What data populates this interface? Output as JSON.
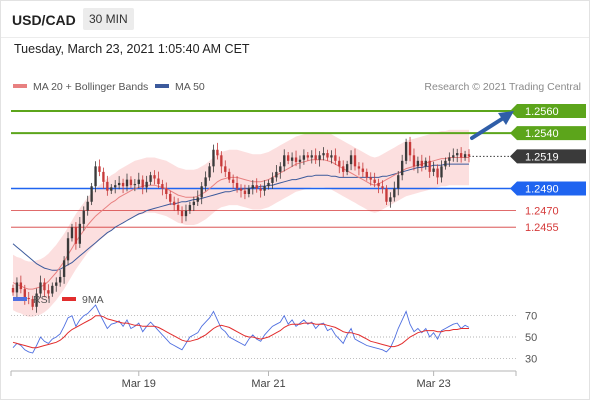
{
  "header": {
    "symbol": "USD/CAD",
    "timeframe": "30 MIN"
  },
  "datetime": "Tuesday, March 23, 2021 1:05:40 AM CET",
  "colors": {
    "up_candle": "#3a3a3a",
    "down_candle": "#c73a3a",
    "ma20": "#e88080",
    "bands": "#fbd9d9",
    "ma50": "#3c5a9c",
    "resistance": "#5ca51b",
    "pivot": "#1f64f0",
    "support": "#d53a3a",
    "last": "#3a3a3a",
    "rsi": "#5070e0",
    "rsi_ma": "#e22d2d",
    "arrow": "#2f5ea8"
  },
  "chart_data": [
    {
      "type": "candlestick",
      "legend": [
        "MA 20 + Bollinger Bands",
        "MA 50"
      ],
      "source": "Research © 2021 Trading Central",
      "x_ticks": [
        "Mar 19",
        "Mar 21",
        "Mar 23"
      ],
      "ylim": [
        1.24,
        1.257
      ],
      "levels": [
        {
          "value": 1.256,
          "label": "1.2560",
          "kind": "resistance"
        },
        {
          "value": 1.254,
          "label": "1.2540",
          "kind": "resistance"
        },
        {
          "value": 1.2519,
          "label": "1.2519",
          "kind": "last"
        },
        {
          "value": 1.249,
          "label": "1.2490",
          "kind": "pivot"
        },
        {
          "value": 1.247,
          "label": "1.2470",
          "kind": "support"
        },
        {
          "value": 1.2455,
          "label": "1.2455",
          "kind": "support"
        }
      ],
      "close": [
        1.2396,
        1.2405,
        1.2399,
        1.2391,
        1.239,
        1.2383,
        1.2395,
        1.2405,
        1.2398,
        1.2395,
        1.2402,
        1.2405,
        1.241,
        1.2425,
        1.2445,
        1.2455,
        1.244,
        1.2458,
        1.247,
        1.2478,
        1.2492,
        1.251,
        1.2505,
        1.2496,
        1.2488,
        1.2491,
        1.2493,
        1.2495,
        1.2492,
        1.2498,
        1.2493,
        1.2494,
        1.2498,
        1.2491,
        1.2496,
        1.2502,
        1.2499,
        1.2494,
        1.249,
        1.2485,
        1.2478,
        1.2475,
        1.247,
        1.2465,
        1.247,
        1.2475,
        1.2478,
        1.2482,
        1.2492,
        1.25,
        1.251,
        1.2525,
        1.252,
        1.251,
        1.2505,
        1.2498,
        1.2495,
        1.249,
        1.2488,
        1.2485,
        1.249,
        1.2493,
        1.249,
        1.2488,
        1.2492,
        1.2495,
        1.25,
        1.2505,
        1.251,
        1.252,
        1.2515,
        1.2518,
        1.2514,
        1.2516,
        1.252,
        1.2518,
        1.252,
        1.2516,
        1.252,
        1.2522,
        1.2518,
        1.252,
        1.2515,
        1.251,
        1.2505,
        1.2512,
        1.252,
        1.251,
        1.2508,
        1.2505,
        1.25,
        1.2498,
        1.2495,
        1.2492,
        1.249,
        1.2478,
        1.2482,
        1.249,
        1.2502,
        1.2515,
        1.2532,
        1.252,
        1.251,
        1.2515,
        1.251,
        1.2515,
        1.2505,
        1.2508,
        1.25,
        1.251,
        1.2515,
        1.2518,
        1.252,
        1.2522,
        1.2518,
        1.2521,
        1.2519
      ],
      "ma20": [
        1.2405,
        1.2403,
        1.2402,
        1.24,
        1.2399,
        1.2399,
        1.24,
        1.2401,
        1.2403,
        1.2406,
        1.241,
        1.2414,
        1.2419,
        1.2424,
        1.243,
        1.2436,
        1.2442,
        1.2447,
        1.2452,
        1.2457,
        1.2461,
        1.2465,
        1.2468,
        1.2471,
        1.2474,
        1.2477,
        1.2479,
        1.2482,
        1.2484,
        1.2486,
        1.2488,
        1.249,
        1.2491,
        1.2492,
        1.2493,
        1.2493,
        1.2493,
        1.2492,
        1.2491,
        1.249,
        1.2488,
        1.2486,
        1.2484,
        1.2483,
        1.2482,
        1.2482,
        1.2482,
        1.2483,
        1.2485,
        1.2487,
        1.249,
        1.2493,
        1.2496,
        1.2498,
        1.2499,
        1.25,
        1.25,
        1.25,
        1.2499,
        1.2498,
        1.2497,
        1.2496,
        1.2496,
        1.2496,
        1.2497,
        1.2498,
        1.25,
        1.2502,
        1.2504,
        1.2506,
        1.2508,
        1.251,
        1.2512,
        1.2513,
        1.2514,
        1.2515,
        1.2516,
        1.2516,
        1.2516,
        1.2516,
        1.2515,
        1.2514,
        1.2512,
        1.251,
        1.2508,
        1.2506,
        1.2504,
        1.2502,
        1.25,
        1.2498,
        1.2496,
        1.2494,
        1.2493,
        1.2494,
        1.2496,
        1.2498,
        1.25,
        1.2502,
        1.2504,
        1.2506,
        1.2508,
        1.2509,
        1.251,
        1.2511,
        1.2512,
        1.2513,
        1.2514,
        1.2515,
        1.2516,
        1.2517,
        1.2517,
        1.2518,
        1.2518,
        1.2518,
        1.2518,
        1.2518,
        1.2518
      ],
      "ma50": [
        1.244,
        1.2437,
        1.2434,
        1.2431,
        1.2428,
        1.2425,
        1.2422,
        1.242,
        1.2418,
        1.2417,
        1.2416,
        1.2416,
        1.2417,
        1.2419,
        1.2421,
        1.2423,
        1.2426,
        1.2429,
        1.2432,
        1.2435,
        1.2438,
        1.2441,
        1.2444,
        1.2447,
        1.245,
        1.2452,
        1.2455,
        1.2457,
        1.2459,
        1.2461,
        1.2463,
        1.2465,
        1.2467,
        1.2468,
        1.247,
        1.2471,
        1.2472,
        1.2473,
        1.2474,
        1.2475,
        1.2476,
        1.2476,
        1.2477,
        1.2478,
        1.2478,
        1.2479,
        1.248,
        1.248,
        1.2481,
        1.2482,
        1.2483,
        1.2484,
        1.2485,
        1.2486,
        1.2487,
        1.2487,
        1.2488,
        1.2489,
        1.2489,
        1.249,
        1.249,
        1.2491,
        1.2491,
        1.2492,
        1.2492,
        1.2493,
        1.2493,
        1.2494,
        1.2495,
        1.2496,
        1.2497,
        1.2498,
        1.2498,
        1.2499,
        1.25,
        1.2501,
        1.2501,
        1.2502,
        1.2502,
        1.2502,
        1.2502,
        1.2501,
        1.2501,
        1.25,
        1.25,
        1.25,
        1.25,
        1.25,
        1.25,
        1.25,
        1.25,
        1.25,
        1.25,
        1.25,
        1.2501,
        1.2501,
        1.2502,
        1.2503,
        1.2504,
        1.2505,
        1.2506,
        1.2507,
        1.2508,
        1.2509,
        1.2509,
        1.251,
        1.251,
        1.2511,
        1.2511,
        1.2511,
        1.2512,
        1.2512,
        1.2512,
        1.2512,
        1.2512,
        1.2512,
        1.2512
      ],
      "band_width": 0.0025
    },
    {
      "type": "line",
      "legend": [
        "RSI",
        "9MA"
      ],
      "y_ticks": [
        "70",
        "50",
        "30"
      ],
      "ylim": [
        20,
        80
      ],
      "reference_lines": [
        70,
        50,
        30
      ],
      "rsi": [
        40,
        44,
        42,
        38,
        36,
        35,
        42,
        50,
        46,
        44,
        48,
        50,
        53,
        60,
        68,
        70,
        60,
        66,
        70,
        72,
        76,
        80,
        72,
        65,
        58,
        62,
        63,
        65,
        60,
        66,
        58,
        60,
        63,
        55,
        60,
        64,
        60,
        56,
        52,
        48,
        44,
        42,
        40,
        38,
        44,
        50,
        52,
        54,
        60,
        64,
        68,
        74,
        66,
        58,
        55,
        50,
        48,
        46,
        44,
        42,
        48,
        52,
        48,
        46,
        52,
        56,
        60,
        62,
        64,
        70,
        62,
        66,
        60,
        63,
        66,
        62,
        64,
        58,
        62,
        63,
        56,
        58,
        52,
        48,
        44,
        52,
        58,
        48,
        46,
        44,
        42,
        41,
        40,
        39,
        38,
        36,
        40,
        48,
        58,
        66,
        74,
        62,
        55,
        58,
        54,
        58,
        50,
        54,
        48,
        56,
        58,
        60,
        62,
        63,
        58,
        61,
        59
      ],
      "rsi_ma": [
        45,
        44,
        43,
        42,
        41,
        40,
        40,
        41,
        42,
        43,
        44,
        45,
        47,
        50,
        54,
        57,
        59,
        61,
        63,
        65,
        67,
        70,
        70,
        69,
        67,
        66,
        65,
        64,
        63,
        63,
        62,
        61,
        61,
        60,
        60,
        60,
        60,
        59,
        57,
        55,
        53,
        51,
        49,
        47,
        46,
        46,
        47,
        48,
        50,
        52,
        55,
        58,
        60,
        61,
        60,
        59,
        57,
        55,
        53,
        51,
        50,
        50,
        49,
        48,
        49,
        50,
        52,
        54,
        56,
        59,
        61,
        62,
        62,
        62,
        63,
        63,
        63,
        62,
        62,
        62,
        61,
        60,
        59,
        57,
        55,
        54,
        54,
        53,
        52,
        50,
        48,
        46,
        45,
        44,
        43,
        42,
        41,
        41,
        42,
        44,
        47,
        50,
        52,
        54,
        55,
        56,
        56,
        56,
        55,
        55,
        56,
        56,
        57,
        57,
        58,
        58,
        58
      ],
      "ref_labels": [
        "70",
        "50",
        "30"
      ]
    }
  ]
}
